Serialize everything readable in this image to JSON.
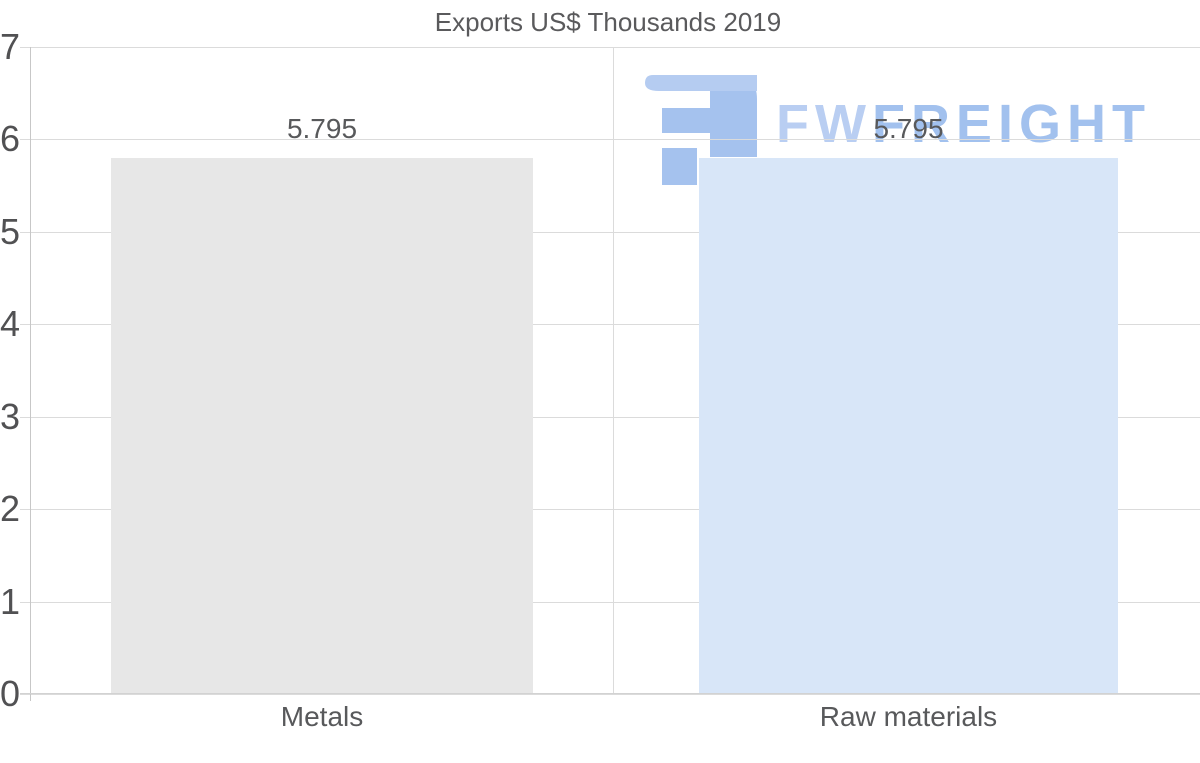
{
  "chart": {
    "title": "Exports US$ Thousands 2019"
  },
  "chart_data": {
    "type": "bar",
    "title": "Exports US$ Thousands 2019",
    "categories": [
      "Metals",
      "Raw materials"
    ],
    "values": [
      5.795,
      5.795
    ],
    "value_labels": [
      "5.795",
      "5.795"
    ],
    "ylim": [
      0,
      7
    ],
    "yticks": [
      0,
      1,
      2,
      3,
      4,
      5,
      6,
      7
    ],
    "grid": true,
    "legend": "none",
    "bar_colors": [
      "#e7e7e7",
      "#d8e6f8"
    ],
    "xlabel": "",
    "ylabel": ""
  },
  "watermark": {
    "name": "fwfreight-logo",
    "text_part1": "FW",
    "text_part2": "FREIGHT",
    "color_light": "#b9cef2",
    "color_dark": "#a2c1ee",
    "icon_color_top": "#b5ccf1",
    "icon_color_main": "#a5c2ee"
  },
  "colors": {
    "background": "#ffffff",
    "grid": "#dbdbdb",
    "axis": "#c7c7c7",
    "tick_text": "#515153",
    "label_text": "#58595b",
    "title_text": "#5a5a5c"
  }
}
